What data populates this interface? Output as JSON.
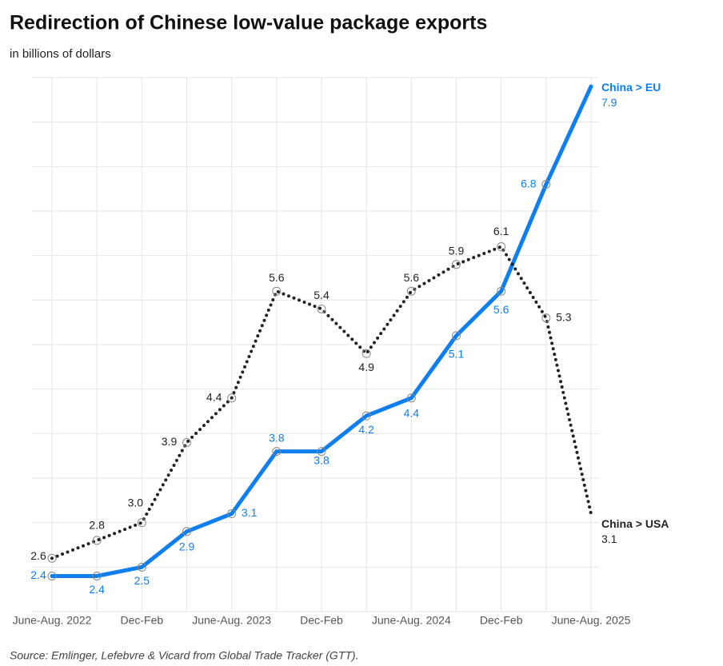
{
  "chart_data": {
    "type": "line",
    "title": "Redirection of Chinese low-value package exports",
    "subtitle": "in billions of dollars",
    "source": "Source: Emlinger, Lefebvre & Vicard from Global Trade Tracker (GTT).",
    "categories": [
      "June-Aug. 2022",
      null,
      "Dec-Feb",
      null,
      "June-Aug. 2023",
      null,
      "Dec-Feb",
      null,
      "June-Aug. 2024",
      null,
      "Dec-Feb",
      null,
      "June-Aug. 2025"
    ],
    "series": [
      {
        "name": "China > EU",
        "color": "#0f7ff0",
        "style": "solid",
        "values": [
          2.4,
          2.4,
          2.5,
          2.9,
          3.1,
          3.8,
          3.8,
          4.2,
          4.4,
          5.1,
          5.6,
          6.8,
          7.9
        ],
        "value_labels": [
          "2.4",
          "2.4",
          "2.5",
          "2.9",
          "3.1",
          "3.8",
          "3.8",
          "4.2",
          "4.4",
          "5.1",
          "5.6",
          "6.8",
          "7.9"
        ]
      },
      {
        "name": "China > USA",
        "color": "#222222",
        "style": "dotted",
        "values": [
          2.6,
          2.8,
          3.0,
          3.9,
          4.4,
          5.6,
          5.4,
          4.9,
          5.6,
          5.9,
          6.1,
          5.3,
          3.1
        ],
        "value_labels": [
          "2.6",
          "2.8",
          "3.0",
          "3.9",
          "4.4",
          "5.6",
          "5.4",
          "4.9",
          "5.6",
          "5.9",
          "6.1",
          "5.3",
          "3.1"
        ]
      }
    ],
    "ylim": [
      2,
      8
    ],
    "yticks": [
      2,
      2.5,
      3,
      3.5,
      4,
      4.5,
      5,
      5.5,
      6,
      6.5,
      7,
      7.5,
      8
    ],
    "grid": true
  }
}
